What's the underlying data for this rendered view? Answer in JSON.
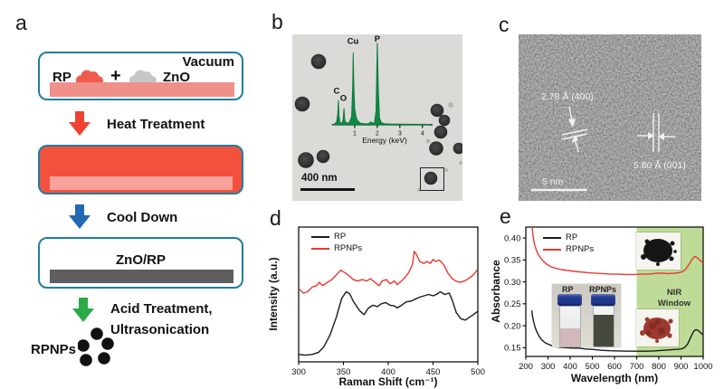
{
  "panels": {
    "a": {
      "letter": "a",
      "vacuum_label": "Vacuum",
      "rp_label": "RP",
      "plus": "+",
      "zno_label": "ZnO",
      "heat_label": "Heat Treatment",
      "cool_label": "Cool Down",
      "zno_rp_label": "ZnO/RP",
      "acid_label1": "Acid Treatment,",
      "acid_label2": "Ultrasonication",
      "product_label": "RPNPs",
      "dots": [
        [
          21,
          9
        ],
        [
          6,
          22
        ],
        [
          33,
          20
        ],
        [
          9,
          38
        ],
        [
          29,
          36
        ]
      ],
      "colors": {
        "outline": "#1d7f9e",
        "red_fill": "#f2513e",
        "salmon_bar": "#ef9089",
        "salmon_inner": "#f7a19a",
        "rp_blob": "#f15b4c",
        "zno_blob": "#c6c6c6",
        "gray_bar": "#5e5e5e",
        "heat_arrow": "#ee4330",
        "cool_arrow": "#2268b4",
        "acid_arrow": "#2baa48",
        "dot": "#111111"
      }
    },
    "b": {
      "letter": "b",
      "scalebar_label": "400 nm",
      "particles": [
        [
          29,
          30,
          8
        ],
        [
          11,
          77,
          8
        ],
        [
          15,
          139,
          8.5
        ],
        [
          34,
          135,
          7
        ],
        [
          160,
          84,
          7
        ],
        [
          168,
          95,
          6
        ],
        [
          164,
          108,
          7
        ],
        [
          159,
          126,
          7.5
        ],
        [
          184,
          126,
          6
        ],
        [
          153,
          159,
          7
        ]
      ],
      "specks": [
        [
          175,
          78,
          3
        ],
        [
          150,
          118,
          2.5
        ],
        [
          186,
          142,
          2
        ],
        [
          140,
          172,
          2
        ],
        [
          170,
          150,
          2
        ]
      ]
    },
    "c": {
      "letter": "c",
      "spacing1": "2.78 Å (400)",
      "spacing2": "5.80 Å (001)",
      "scalebar_label": "5 nm"
    },
    "d": {
      "letter": "d"
    },
    "e": {
      "letter": "e",
      "nir_line1": "NIR",
      "nir_line2": "Window",
      "vial_left_label": "RP",
      "vial_right_label": "RPNPs",
      "colors": {
        "black_powder": "#161616",
        "red_powder": "#9c392e",
        "red_powder_dark": "#7c2a22",
        "cap": "#20388f",
        "rp_liquid": "#d2b8ba",
        "rpnps_liquid": "#44493f"
      }
    }
  },
  "chart_data": [
    {
      "type": "line",
      "title": "Raman spectra of RP and RPNPs",
      "xlabel": "Raman Shift (cm⁻¹)",
      "ylabel": "Intensity (a.u.)",
      "xlim": [
        300,
        500
      ],
      "ylim": [
        0,
        1
      ],
      "xticks": [
        300,
        350,
        400,
        450,
        500
      ],
      "yticks": [],
      "grid": false,
      "legend_position": "top-left",
      "series": [
        {
          "name": "RP",
          "color": "#1a1a1a",
          "points": [
            [
              300,
              0.055
            ],
            [
              308,
              0.05
            ],
            [
              315,
              0.055
            ],
            [
              322,
              0.07
            ],
            [
              328,
              0.11
            ],
            [
              335,
              0.2
            ],
            [
              342,
              0.33
            ],
            [
              348,
              0.47
            ],
            [
              353,
              0.52
            ],
            [
              357,
              0.505
            ],
            [
              361,
              0.45
            ],
            [
              368,
              0.38
            ],
            [
              373,
              0.35
            ],
            [
              378,
              0.4
            ],
            [
              383,
              0.42
            ],
            [
              388,
              0.41
            ],
            [
              392,
              0.43
            ],
            [
              397,
              0.44
            ],
            [
              402,
              0.42
            ],
            [
              407,
              0.415
            ],
            [
              410,
              0.4
            ],
            [
              415,
              0.42
            ],
            [
              420,
              0.445
            ],
            [
              425,
              0.45
            ],
            [
              430,
              0.465
            ],
            [
              435,
              0.48
            ],
            [
              440,
              0.49
            ],
            [
              445,
              0.5
            ],
            [
              450,
              0.49
            ],
            [
              455,
              0.505
            ],
            [
              458,
              0.52
            ],
            [
              463,
              0.5
            ],
            [
              468,
              0.51
            ],
            [
              471,
              0.465
            ],
            [
              476,
              0.365
            ],
            [
              481,
              0.32
            ],
            [
              486,
              0.31
            ],
            [
              491,
              0.333
            ],
            [
              495,
              0.35
            ],
            [
              500,
              0.375
            ]
          ]
        },
        {
          "name": "RPNPs",
          "color": "#e8392f",
          "points": [
            [
              300,
              0.545
            ],
            [
              305,
              0.51
            ],
            [
              310,
              0.52
            ],
            [
              315,
              0.555
            ],
            [
              320,
              0.565
            ],
            [
              323,
              0.59
            ],
            [
              327,
              0.565
            ],
            [
              332,
              0.59
            ],
            [
              337,
              0.61
            ],
            [
              342,
              0.645
            ],
            [
              347,
              0.68
            ],
            [
              352,
              0.66
            ],
            [
              357,
              0.635
            ],
            [
              361,
              0.61
            ],
            [
              366,
              0.6
            ],
            [
              371,
              0.61
            ],
            [
              376,
              0.6
            ],
            [
              380,
              0.617
            ],
            [
              385,
              0.59
            ],
            [
              390,
              0.565
            ],
            [
              393,
              0.6
            ],
            [
              398,
              0.61
            ],
            [
              402,
              0.58
            ],
            [
              407,
              0.6
            ],
            [
              410,
              0.573
            ],
            [
              413,
              0.59
            ],
            [
              418,
              0.62
            ],
            [
              423,
              0.665
            ],
            [
              427,
              0.72
            ],
            [
              429,
              0.82
            ],
            [
              432,
              0.79
            ],
            [
              435,
              0.745
            ],
            [
              440,
              0.73
            ],
            [
              443,
              0.745
            ],
            [
              447,
              0.73
            ],
            [
              450,
              0.76
            ],
            [
              453,
              0.745
            ],
            [
              457,
              0.755
            ],
            [
              462,
              0.72
            ],
            [
              467,
              0.655
            ],
            [
              471,
              0.62
            ],
            [
              475,
              0.6
            ],
            [
              480,
              0.59
            ],
            [
              485,
              0.6
            ],
            [
              490,
              0.62
            ],
            [
              495,
              0.645
            ],
            [
              499,
              0.68
            ]
          ]
        }
      ]
    },
    {
      "type": "line",
      "title": "UV-Vis-NIR absorbance of RP and RPNPs",
      "xlabel": "Wavelength (nm)",
      "ylabel": "Absorbance",
      "xlim": [
        200,
        1000
      ],
      "ylim": [
        0.13,
        0.425
      ],
      "xticks": [
        200,
        300,
        400,
        500,
        600,
        700,
        800,
        900,
        1000
      ],
      "yticks": [
        0.15,
        0.2,
        0.25,
        0.3,
        0.35,
        0.4
      ],
      "ytick_decimals": 2,
      "grid": false,
      "legend_position": "top-left",
      "regions": [
        {
          "x0": 700,
          "x1": 1000,
          "color": "#bedc97",
          "name": "nir-window-region"
        }
      ],
      "series": [
        {
          "name": "RP",
          "color": "#1a1a1a",
          "points": [
            [
              227,
              0.235
            ],
            [
              230,
              0.222
            ],
            [
              235,
              0.21
            ],
            [
              240,
              0.2
            ],
            [
              248,
              0.188
            ],
            [
              258,
              0.178
            ],
            [
              270,
              0.169
            ],
            [
              285,
              0.162
            ],
            [
              300,
              0.158
            ],
            [
              320,
              0.154
            ],
            [
              350,
              0.151
            ],
            [
              380,
              0.15
            ],
            [
              410,
              0.149
            ],
            [
              440,
              0.149
            ],
            [
              470,
              0.147
            ],
            [
              500,
              0.146
            ],
            [
              540,
              0.144
            ],
            [
              580,
              0.143
            ],
            [
              620,
              0.1425
            ],
            [
              660,
              0.142
            ],
            [
              700,
              0.142
            ],
            [
              740,
              0.142
            ],
            [
              780,
              0.1425
            ],
            [
              820,
              0.144
            ],
            [
              850,
              0.145
            ],
            [
              880,
              0.146
            ],
            [
              900,
              0.147
            ],
            [
              915,
              0.15
            ],
            [
              930,
              0.158
            ],
            [
              945,
              0.175
            ],
            [
              958,
              0.188
            ],
            [
              968,
              0.191
            ],
            [
              978,
              0.189
            ],
            [
              988,
              0.184
            ],
            [
              1000,
              0.179
            ]
          ]
        },
        {
          "name": "RPNPs",
          "color": "#e8392f",
          "points": [
            [
              227,
              0.44
            ],
            [
              229,
              0.425
            ],
            [
              232,
              0.408
            ],
            [
              236,
              0.394
            ],
            [
              241,
              0.383
            ],
            [
              247,
              0.373
            ],
            [
              254,
              0.365
            ],
            [
              262,
              0.358
            ],
            [
              272,
              0.351
            ],
            [
              284,
              0.345
            ],
            [
              298,
              0.339
            ],
            [
              315,
              0.334
            ],
            [
              335,
              0.331
            ],
            [
              360,
              0.328
            ],
            [
              390,
              0.326
            ],
            [
              420,
              0.324
            ],
            [
              450,
              0.3225
            ],
            [
              480,
              0.321
            ],
            [
              510,
              0.32
            ],
            [
              545,
              0.319
            ],
            [
              580,
              0.318
            ],
            [
              615,
              0.3175
            ],
            [
              650,
              0.317
            ],
            [
              690,
              0.317
            ],
            [
              725,
              0.3175
            ],
            [
              760,
              0.318
            ],
            [
              790,
              0.3195
            ],
            [
              815,
              0.32
            ],
            [
              840,
              0.319
            ],
            [
              865,
              0.3195
            ],
            [
              890,
              0.321
            ],
            [
              905,
              0.323
            ],
            [
              920,
              0.328
            ],
            [
              935,
              0.339
            ],
            [
              950,
              0.352
            ],
            [
              962,
              0.358
            ],
            [
              972,
              0.356
            ],
            [
              982,
              0.351
            ],
            [
              992,
              0.346
            ],
            [
              1000,
              0.343
            ]
          ]
        }
      ]
    },
    {
      "type": "area",
      "title": "EDS spectrum",
      "xlabel": "Energy (keV)",
      "ylabel": "",
      "xlim": [
        0,
        4.45
      ],
      "ylim": [
        0,
        1.02
      ],
      "xticks": [
        1,
        2,
        3,
        4
      ],
      "yticks": [],
      "grid": false,
      "annotations": [
        {
          "text": "C",
          "x": 0.2,
          "y": 0.36
        },
        {
          "text": "O",
          "x": 0.5,
          "y": 0.27
        },
        {
          "text": "Cu",
          "x": 0.92,
          "y": 0.97
        },
        {
          "text": "P",
          "x": 2.0,
          "y": 1.0
        }
      ],
      "series": [
        {
          "name": "EDS",
          "color": "#0f8a44",
          "stroke": "#0a7a3c",
          "fill": true,
          "width": 1,
          "points": [
            [
              0,
              0.005
            ],
            [
              0.12,
              0.01
            ],
            [
              0.2,
              0.04
            ],
            [
              0.25,
              0.13
            ],
            [
              0.277,
              0.3
            ],
            [
              0.3,
              0.12
            ],
            [
              0.34,
              0.03
            ],
            [
              0.44,
              0.02
            ],
            [
              0.49,
              0.06
            ],
            [
              0.525,
              0.2
            ],
            [
              0.56,
              0.05
            ],
            [
              0.64,
              0.02
            ],
            [
              0.76,
              0.03
            ],
            [
              0.86,
              0.1
            ],
            [
              0.91,
              0.45
            ],
            [
              0.935,
              0.88
            ],
            [
              0.96,
              0.5
            ],
            [
              1.0,
              0.2
            ],
            [
              1.06,
              0.1
            ],
            [
              1.13,
              0.05
            ],
            [
              1.25,
              0.02
            ],
            [
              1.45,
              0.012
            ],
            [
              1.6,
              0.012
            ],
            [
              1.72,
              0.035
            ],
            [
              1.78,
              0.02
            ],
            [
              1.88,
              0.025
            ],
            [
              1.95,
              0.18
            ],
            [
              2.0,
              1.0
            ],
            [
              2.05,
              0.4
            ],
            [
              2.1,
              0.08
            ],
            [
              2.18,
              0.025
            ],
            [
              2.35,
              0.012
            ],
            [
              2.6,
              0.01
            ],
            [
              3.0,
              0.009
            ],
            [
              3.5,
              0.007
            ],
            [
              4.0,
              0.007
            ],
            [
              4.35,
              0.006
            ]
          ]
        }
      ]
    }
  ]
}
